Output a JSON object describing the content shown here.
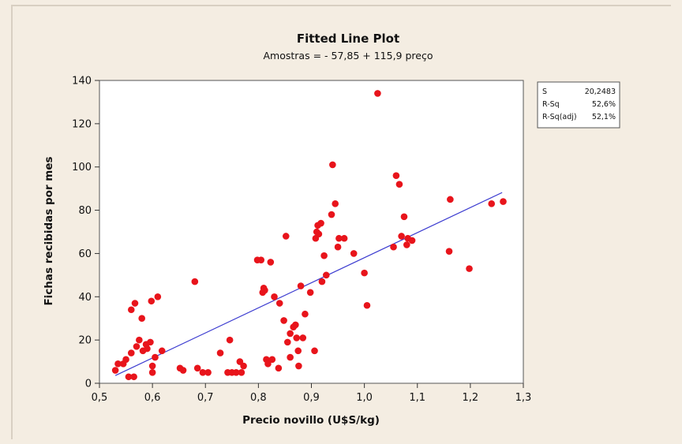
{
  "chart_data": {
    "type": "scatter",
    "title": "Fitted Line Plot",
    "subtitle": "Amostras =  - 57,85 + 115,9 preço",
    "xlabel": "Precio novillo (U$S/kg)",
    "ylabel": "Fichas recibidas por mes",
    "xlim": [
      0.5,
      1.3
    ],
    "ylim": [
      0,
      140
    ],
    "xticks": [
      0.5,
      0.6,
      0.7,
      0.8,
      0.9,
      1.0,
      1.1,
      1.2,
      1.3
    ],
    "xtick_labels": [
      "0,5",
      "0,6",
      "0,7",
      "0,8",
      "0,9",
      "1,0",
      "1,1",
      "1,2",
      "1,3"
    ],
    "yticks": [
      0,
      20,
      40,
      60,
      80,
      100,
      120,
      140
    ],
    "ytick_labels": [
      "0",
      "20",
      "40",
      "60",
      "80",
      "100",
      "120",
      "140"
    ],
    "grid": false,
    "point_color": "#e8141b",
    "line_color": "#3c3cd0",
    "fit_line": {
      "intercept": -57.85,
      "slope": 115.9,
      "x_range": [
        0.53,
        1.26
      ]
    },
    "stats": [
      {
        "label": "S",
        "value": "20,2483"
      },
      {
        "label": "R-Sq",
        "value": "52,6%"
      },
      {
        "label": "R-Sq(adj)",
        "value": "52,1%"
      }
    ],
    "points": [
      [
        0.53,
        6
      ],
      [
        0.535,
        9
      ],
      [
        0.545,
        9
      ],
      [
        0.55,
        11
      ],
      [
        0.555,
        3
      ],
      [
        0.56,
        14
      ],
      [
        0.56,
        34
      ],
      [
        0.565,
        3
      ],
      [
        0.567,
        37
      ],
      [
        0.57,
        17
      ],
      [
        0.575,
        20
      ],
      [
        0.58,
        30
      ],
      [
        0.582,
        15
      ],
      [
        0.588,
        18
      ],
      [
        0.59,
        16
      ],
      [
        0.596,
        19
      ],
      [
        0.598,
        38
      ],
      [
        0.6,
        8
      ],
      [
        0.6,
        5
      ],
      [
        0.605,
        12
      ],
      [
        0.61,
        40
      ],
      [
        0.618,
        15
      ],
      [
        0.652,
        7
      ],
      [
        0.658,
        6
      ],
      [
        0.68,
        47
      ],
      [
        0.685,
        7
      ],
      [
        0.695,
        5
      ],
      [
        0.705,
        5
      ],
      [
        0.728,
        14
      ],
      [
        0.742,
        5
      ],
      [
        0.746,
        20
      ],
      [
        0.75,
        5
      ],
      [
        0.758,
        5
      ],
      [
        0.765,
        10
      ],
      [
        0.768,
        5
      ],
      [
        0.772,
        8
      ],
      [
        0.798,
        57
      ],
      [
        0.805,
        57
      ],
      [
        0.808,
        42
      ],
      [
        0.81,
        44
      ],
      [
        0.812,
        43
      ],
      [
        0.815,
        11
      ],
      [
        0.818,
        9
      ],
      [
        0.823,
        56
      ],
      [
        0.826,
        11
      ],
      [
        0.83,
        40
      ],
      [
        0.838,
        7
      ],
      [
        0.84,
        37
      ],
      [
        0.848,
        29
      ],
      [
        0.852,
        68
      ],
      [
        0.855,
        19
      ],
      [
        0.86,
        23
      ],
      [
        0.86,
        12
      ],
      [
        0.866,
        26
      ],
      [
        0.87,
        27
      ],
      [
        0.872,
        21
      ],
      [
        0.875,
        15
      ],
      [
        0.876,
        8
      ],
      [
        0.88,
        45
      ],
      [
        0.884,
        21
      ],
      [
        0.888,
        32
      ],
      [
        0.898,
        42
      ],
      [
        0.906,
        15
      ],
      [
        0.908,
        67
      ],
      [
        0.91,
        70
      ],
      [
        0.912,
        73
      ],
      [
        0.914,
        69
      ],
      [
        0.918,
        74
      ],
      [
        0.92,
        47
      ],
      [
        0.924,
        59
      ],
      [
        0.928,
        50
      ],
      [
        0.938,
        78
      ],
      [
        0.94,
        101
      ],
      [
        0.945,
        83
      ],
      [
        0.95,
        63
      ],
      [
        0.952,
        67
      ],
      [
        0.962,
        67
      ],
      [
        0.98,
        60
      ],
      [
        1.0,
        51
      ],
      [
        1.005,
        36
      ],
      [
        1.025,
        134
      ],
      [
        1.055,
        63
      ],
      [
        1.06,
        96
      ],
      [
        1.066,
        92
      ],
      [
        1.07,
        68
      ],
      [
        1.075,
        77
      ],
      [
        1.08,
        64
      ],
      [
        1.082,
        67
      ],
      [
        1.09,
        66
      ],
      [
        1.16,
        61
      ],
      [
        1.162,
        85
      ],
      [
        1.198,
        53
      ],
      [
        1.24,
        83
      ],
      [
        1.262,
        84
      ]
    ]
  }
}
